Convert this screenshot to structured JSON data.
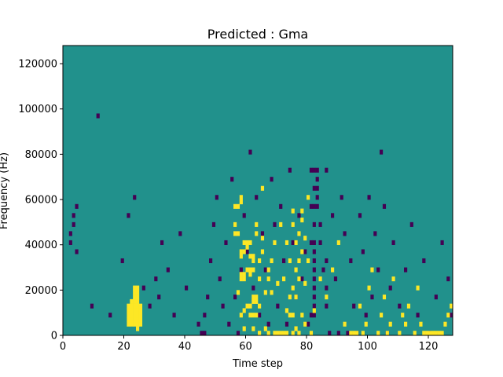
{
  "chart_data": {
    "type": "heatmap",
    "title": "Predicted : Gma",
    "xlabel": "Time step",
    "ylabel": "Frequency (Hz)",
    "xlim": [
      0,
      128
    ],
    "ylim": [
      0,
      128000
    ],
    "grid": false,
    "legend": "none",
    "xticks": [
      0,
      20,
      40,
      60,
      80,
      100,
      120
    ],
    "xtick_labels": [
      "0",
      "20",
      "40",
      "60",
      "80",
      "100",
      "120"
    ],
    "yticks": [
      0,
      20000,
      40000,
      60000,
      80000,
      100000,
      120000
    ],
    "ytick_labels": [
      "0",
      "20000",
      "40000",
      "60000",
      "80000",
      "100000",
      "120000"
    ],
    "grid_shape": {
      "time_steps": 128,
      "frequency_bins": 64,
      "bin_hz": 2000
    },
    "colors": {
      "low": "#440154",
      "mid": "#21918c",
      "high": "#fde725"
    },
    "background_value": "mid",
    "cells": {
      "high": [
        [
          21,
          2
        ],
        [
          21,
          3
        ],
        [
          21,
          4
        ],
        [
          21,
          5
        ],
        [
          21,
          6
        ],
        [
          22,
          2
        ],
        [
          22,
          3
        ],
        [
          22,
          4
        ],
        [
          22,
          5
        ],
        [
          22,
          6
        ],
        [
          22,
          7
        ],
        [
          23,
          2
        ],
        [
          23,
          3
        ],
        [
          23,
          4
        ],
        [
          23,
          5
        ],
        [
          23,
          6
        ],
        [
          23,
          7
        ],
        [
          23,
          8
        ],
        [
          23,
          9
        ],
        [
          23,
          10
        ],
        [
          24,
          1
        ],
        [
          24,
          2
        ],
        [
          24,
          3
        ],
        [
          24,
          4
        ],
        [
          24,
          5
        ],
        [
          24,
          6
        ],
        [
          24,
          7
        ],
        [
          24,
          8
        ],
        [
          24,
          9
        ],
        [
          24,
          10
        ],
        [
          25,
          2
        ],
        [
          25,
          3
        ],
        [
          25,
          4
        ],
        [
          25,
          5
        ],
        [
          25,
          6
        ],
        [
          56,
          22
        ],
        [
          56,
          24
        ],
        [
          56,
          28
        ],
        [
          57,
          9
        ],
        [
          57,
          22
        ],
        [
          57,
          28
        ],
        [
          58,
          4
        ],
        [
          58,
          12
        ],
        [
          58,
          13
        ],
        [
          58,
          17
        ],
        [
          58,
          18
        ],
        [
          58,
          29
        ],
        [
          58,
          30
        ],
        [
          59,
          1
        ],
        [
          59,
          5
        ],
        [
          59,
          12
        ],
        [
          59,
          13
        ],
        [
          59,
          18
        ],
        [
          59,
          20
        ],
        [
          60,
          6
        ],
        [
          60,
          14
        ],
        [
          60,
          19
        ],
        [
          60,
          20
        ],
        [
          61,
          4
        ],
        [
          61,
          6
        ],
        [
          61,
          13
        ],
        [
          61,
          14
        ],
        [
          61,
          17
        ],
        [
          61,
          20
        ],
        [
          62,
          1
        ],
        [
          62,
          4
        ],
        [
          62,
          7
        ],
        [
          62,
          8
        ],
        [
          62,
          14
        ],
        [
          62,
          16
        ],
        [
          62,
          17
        ],
        [
          63,
          4
        ],
        [
          63,
          7
        ],
        [
          63,
          8
        ],
        [
          63,
          22
        ],
        [
          63,
          24
        ],
        [
          64,
          0
        ],
        [
          64,
          6
        ],
        [
          64,
          12
        ],
        [
          64,
          16
        ],
        [
          65,
          18
        ],
        [
          65,
          21
        ],
        [
          65,
          32
        ],
        [
          66,
          1
        ],
        [
          66,
          9
        ],
        [
          67,
          0
        ],
        [
          67,
          12
        ],
        [
          67,
          14
        ],
        [
          68,
          9
        ],
        [
          68,
          16
        ],
        [
          69,
          0
        ],
        [
          69,
          20
        ],
        [
          70,
          0
        ],
        [
          70,
          11
        ],
        [
          71,
          0
        ],
        [
          71,
          24
        ],
        [
          72,
          0
        ],
        [
          72,
          12
        ],
        [
          73,
          0
        ],
        [
          73,
          5
        ],
        [
          73,
          20
        ],
        [
          74,
          4
        ],
        [
          74,
          8
        ],
        [
          74,
          16
        ],
        [
          75,
          0
        ],
        [
          75,
          4
        ],
        [
          75,
          10
        ],
        [
          75,
          24
        ],
        [
          75,
          27
        ],
        [
          76,
          1
        ],
        [
          76,
          8
        ],
        [
          76,
          14
        ],
        [
          76,
          20
        ],
        [
          77,
          0
        ],
        [
          77,
          12
        ],
        [
          77,
          16
        ],
        [
          77,
          22
        ],
        [
          78,
          4
        ],
        [
          78,
          18
        ],
        [
          78,
          25
        ],
        [
          78,
          27
        ],
        [
          79,
          2
        ],
        [
          79,
          11
        ],
        [
          79,
          21
        ],
        [
          80,
          16
        ],
        [
          80,
          30
        ],
        [
          81,
          0
        ],
        [
          82,
          5
        ],
        [
          84,
          12
        ],
        [
          86,
          8
        ],
        [
          88,
          14
        ],
        [
          90,
          20
        ],
        [
          92,
          2
        ],
        [
          94,
          0
        ],
        [
          95,
          0
        ],
        [
          96,
          0
        ],
        [
          97,
          6
        ],
        [
          98,
          0
        ],
        [
          99,
          2
        ],
        [
          100,
          10
        ],
        [
          101,
          14
        ],
        [
          103,
          0
        ],
        [
          104,
          4
        ],
        [
          105,
          8
        ],
        [
          106,
          0
        ],
        [
          107,
          2
        ],
        [
          108,
          12
        ],
        [
          110,
          0
        ],
        [
          111,
          4
        ],
        [
          112,
          2
        ],
        [
          113,
          6
        ],
        [
          115,
          0
        ],
        [
          116,
          10
        ],
        [
          117,
          2
        ],
        [
          118,
          0
        ],
        [
          119,
          0
        ],
        [
          120,
          0
        ],
        [
          121,
          0
        ],
        [
          122,
          0
        ],
        [
          123,
          0
        ],
        [
          124,
          0
        ],
        [
          125,
          2
        ],
        [
          126,
          4
        ],
        [
          127,
          6
        ]
      ],
      "low": [
        [
          2,
          20
        ],
        [
          2,
          22
        ],
        [
          3,
          24
        ],
        [
          3,
          26
        ],
        [
          4,
          18
        ],
        [
          4,
          28
        ],
        [
          9,
          6
        ],
        [
          11,
          48
        ],
        [
          15,
          4
        ],
        [
          19,
          16
        ],
        [
          21,
          26
        ],
        [
          23,
          30
        ],
        [
          26,
          10
        ],
        [
          28,
          6
        ],
        [
          30,
          12
        ],
        [
          31,
          8
        ],
        [
          32,
          20
        ],
        [
          34,
          14
        ],
        [
          36,
          4
        ],
        [
          38,
          22
        ],
        [
          40,
          10
        ],
        [
          44,
          2
        ],
        [
          45,
          0
        ],
        [
          46,
          0
        ],
        [
          46,
          4
        ],
        [
          47,
          8
        ],
        [
          48,
          16
        ],
        [
          49,
          24
        ],
        [
          50,
          30
        ],
        [
          51,
          12
        ],
        [
          52,
          6
        ],
        [
          53,
          20
        ],
        [
          54,
          2
        ],
        [
          55,
          34
        ],
        [
          56,
          8
        ],
        [
          57,
          0
        ],
        [
          58,
          14
        ],
        [
          59,
          26
        ],
        [
          60,
          18
        ],
        [
          61,
          40
        ],
        [
          62,
          10
        ],
        [
          63,
          30
        ],
        [
          64,
          4
        ],
        [
          65,
          22
        ],
        [
          66,
          14
        ],
        [
          67,
          2
        ],
        [
          68,
          34
        ],
        [
          69,
          24
        ],
        [
          70,
          6
        ],
        [
          71,
          28
        ],
        [
          72,
          16
        ],
        [
          73,
          2
        ],
        [
          74,
          36
        ],
        [
          75,
          20
        ],
        [
          76,
          8
        ],
        [
          77,
          26
        ],
        [
          78,
          12
        ],
        [
          79,
          18
        ],
        [
          80,
          2
        ],
        [
          81,
          4
        ],
        [
          81,
          20
        ],
        [
          81,
          28
        ],
        [
          81,
          36
        ],
        [
          82,
          4
        ],
        [
          82,
          6
        ],
        [
          82,
          8
        ],
        [
          82,
          10
        ],
        [
          82,
          12
        ],
        [
          82,
          14
        ],
        [
          82,
          16
        ],
        [
          82,
          18
        ],
        [
          82,
          20
        ],
        [
          82,
          24
        ],
        [
          82,
          28
        ],
        [
          82,
          32
        ],
        [
          82,
          36
        ],
        [
          83,
          28
        ],
        [
          83,
          30
        ],
        [
          83,
          32
        ],
        [
          83,
          34
        ],
        [
          83,
          36
        ],
        [
          84,
          20
        ],
        [
          84,
          24
        ],
        [
          85,
          14
        ],
        [
          86,
          6
        ],
        [
          86,
          10
        ],
        [
          86,
          16
        ],
        [
          86,
          36
        ],
        [
          87,
          0
        ],
        [
          88,
          26
        ],
        [
          89,
          12
        ],
        [
          90,
          0
        ],
        [
          91,
          30
        ],
        [
          92,
          22
        ],
        [
          93,
          0
        ],
        [
          94,
          16
        ],
        [
          95,
          6
        ],
        [
          96,
          0
        ],
        [
          97,
          26
        ],
        [
          98,
          18
        ],
        [
          99,
          4
        ],
        [
          100,
          30
        ],
        [
          101,
          8
        ],
        [
          102,
          22
        ],
        [
          103,
          14
        ],
        [
          104,
          40
        ],
        [
          105,
          28
        ],
        [
          106,
          0
        ],
        [
          107,
          10
        ],
        [
          108,
          20
        ],
        [
          110,
          6
        ],
        [
          112,
          14
        ],
        [
          114,
          24
        ],
        [
          116,
          4
        ],
        [
          118,
          16
        ],
        [
          120,
          0
        ],
        [
          122,
          8
        ],
        [
          124,
          20
        ],
        [
          126,
          12
        ],
        [
          127,
          4
        ]
      ]
    }
  }
}
